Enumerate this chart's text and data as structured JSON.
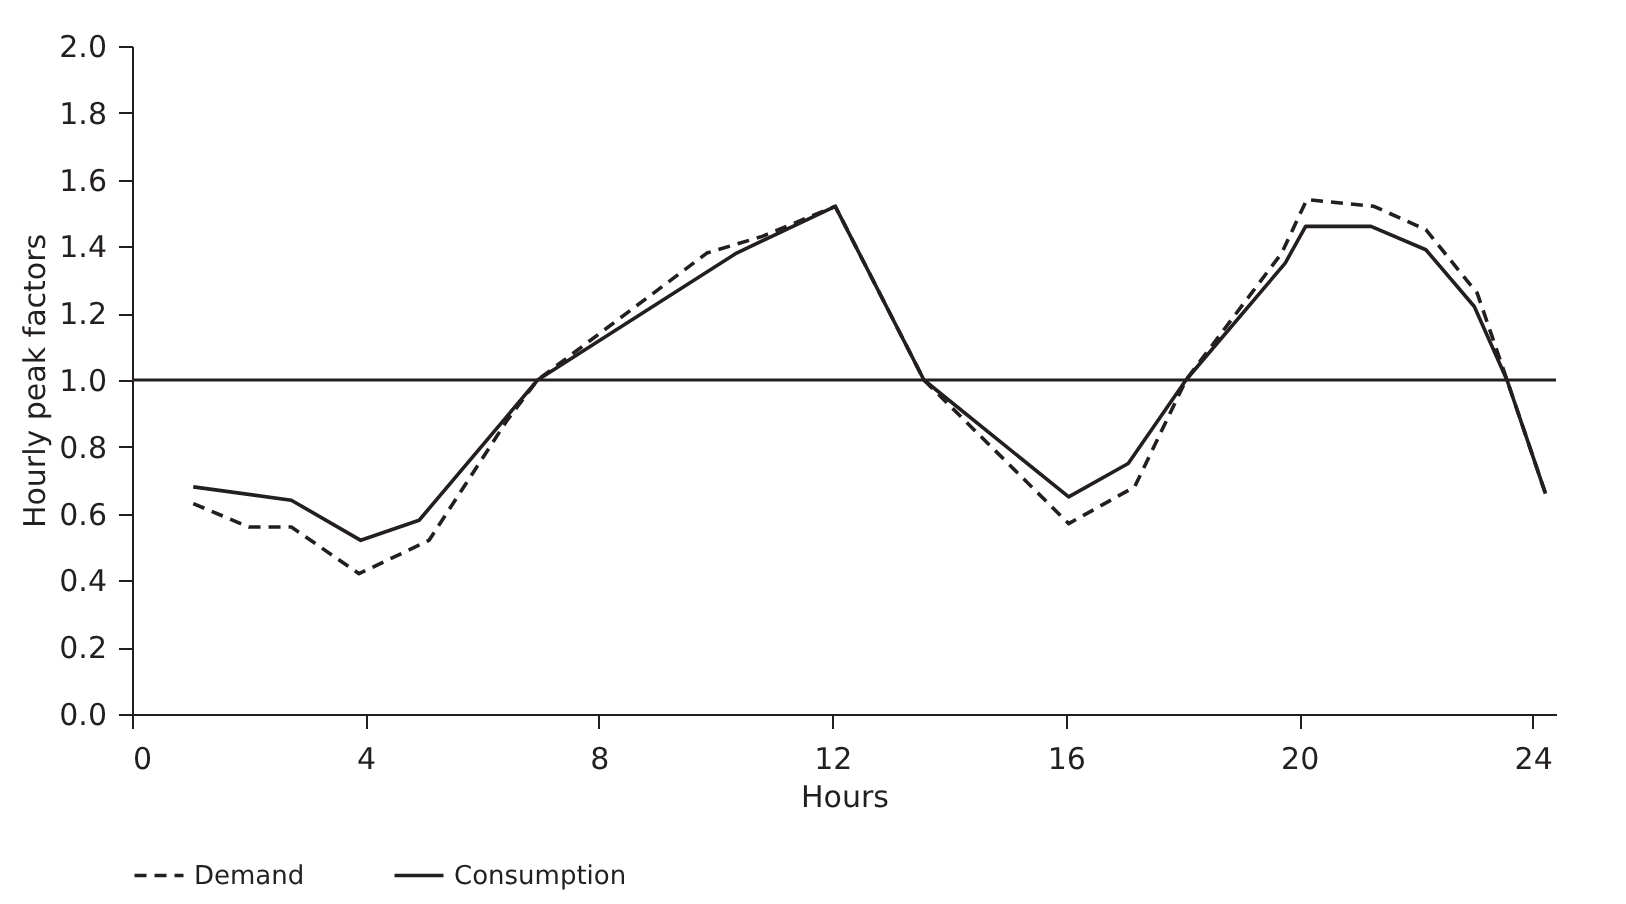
{
  "chart_data": {
    "type": "line",
    "xlabel": "Hours",
    "ylabel": "Hourly peak factors",
    "xlim": [
      0,
      24.4
    ],
    "xticks": [
      0,
      4,
      8,
      12,
      16,
      20,
      24
    ],
    "ylim": [
      0,
      2.0
    ],
    "yticks": [
      {
        "value": 0,
        "label": "0.0"
      },
      {
        "value": 0.2,
        "label": "0.2"
      },
      {
        "value": 0.4,
        "label": "0.4"
      },
      {
        "value": 0.6,
        "label": "0.6"
      },
      {
        "value": 0.8,
        "label": "0.8"
      },
      {
        "value": 1.0,
        "label": "1.0"
      },
      {
        "value": 1.2,
        "label": "1.2"
      },
      {
        "value": 1.4,
        "label": "1.4"
      },
      {
        "value": 1.6,
        "label": "1.6"
      },
      {
        "value": 1.8,
        "label": "1.8"
      },
      {
        "value": 2.0,
        "label": "2.0"
      }
    ],
    "grid": false,
    "legend": "bottom",
    "marker": "none",
    "series": [
      {
        "name": "Demand",
        "color": "#231f20",
        "line_style": "dashed",
        "x": [
          1.05,
          2.0,
          2.73,
          3.89,
          5.09,
          6.43,
          6.95,
          9.85,
          10.8,
          12.05,
          13.57,
          16.05,
          17.18,
          18.06,
          19.7,
          20.13,
          21.28,
          22.17,
          23.05,
          23.56,
          24.22
        ],
        "values": [
          0.63,
          0.56,
          0.56,
          0.42,
          0.52,
          0.88,
          1.0,
          1.38,
          1.43,
          1.52,
          1.0,
          0.57,
          0.68,
          1.0,
          1.38,
          1.54,
          1.52,
          1.45,
          1.26,
          1.0,
          0.66
        ]
      },
      {
        "name": "Consumption",
        "color": "#231f20",
        "line_style": "solid",
        "x": [
          1.05,
          2.73,
          3.92,
          4.92,
          6.95,
          10.36,
          12.05,
          13.57,
          16.05,
          17.07,
          18.06,
          19.76,
          20.11,
          21.23,
          22.17,
          23.0,
          23.56,
          24.22
        ],
        "values": [
          0.68,
          0.64,
          0.52,
          0.58,
          1.0,
          1.38,
          1.52,
          1.0,
          0.65,
          0.75,
          1.0,
          1.35,
          1.46,
          1.46,
          1.39,
          1.22,
          1.0,
          0.66
        ]
      }
    ],
    "ref_lines": [
      {
        "axis": "y",
        "value": 1.0,
        "color": "#231f20"
      }
    ]
  }
}
